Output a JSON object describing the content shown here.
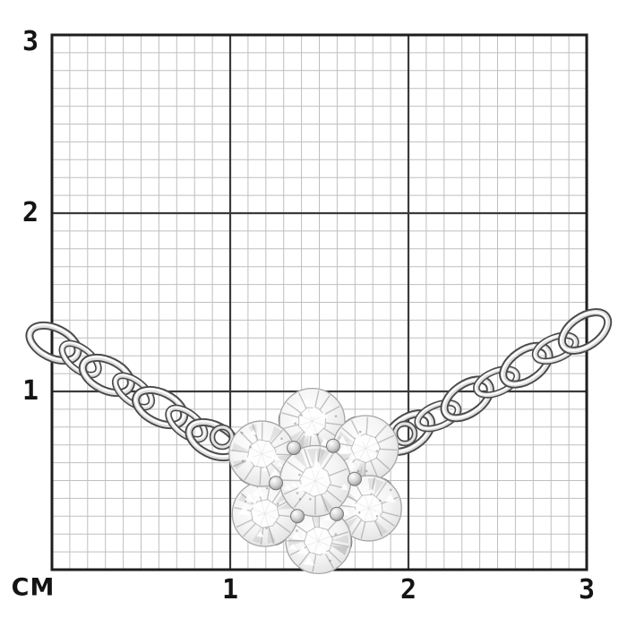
{
  "ruler": {
    "unit_label": "СМ",
    "x_ticks": [
      {
        "label": "1",
        "cm": 1
      },
      {
        "label": "2",
        "cm": 2
      },
      {
        "label": "3",
        "cm": 3
      }
    ],
    "y_ticks": [
      {
        "label": "1",
        "cm": 1
      },
      {
        "label": "2",
        "cm": 2
      },
      {
        "label": "3",
        "cm": 3
      }
    ],
    "grid": {
      "cm_span": 3,
      "minor_per_cm": 10,
      "background": "#ffffff",
      "minor_color": "#bfbfbf",
      "major_color": "#3a3a3a",
      "border_color": "#1e1e1e"
    }
  },
  "subject": {
    "name": "diamond-flower-pendant-necklace",
    "description": "Silver cable-link chain necklace with a flower-shaped cluster pendant of seven round white stones, photographed on centimeter grid paper",
    "pendant_stones_outer": 6,
    "pendant_stones_center": 1,
    "metal_color": "#b9b9b9",
    "metal_edge_color": "#4a4a4a",
    "stone_color": "#f2f2f2"
  }
}
